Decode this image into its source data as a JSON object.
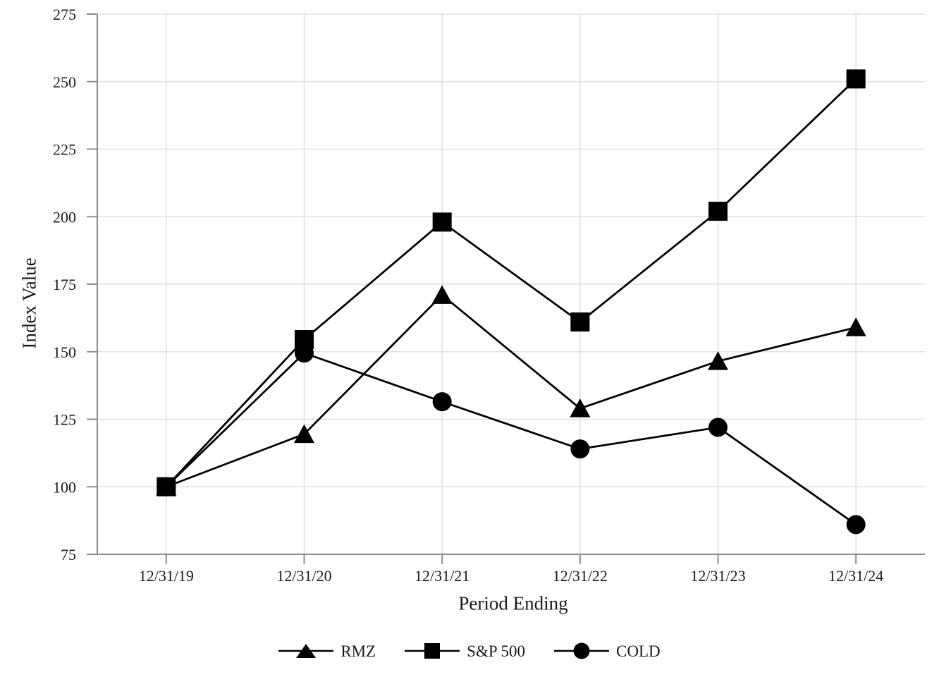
{
  "chart_data": {
    "type": "line",
    "title": "",
    "xlabel": "Period Ending",
    "ylabel": "Index Value",
    "x": [
      "12/31/19",
      "12/31/20",
      "12/31/21",
      "12/31/22",
      "12/31/23",
      "12/31/24"
    ],
    "ylim": [
      75,
      275
    ],
    "yticks": [
      75,
      100,
      125,
      150,
      175,
      200,
      225,
      250,
      275
    ],
    "grid": true,
    "legend_position": "bottom-center",
    "series": [
      {
        "name": "RMZ",
        "marker": "triangle",
        "values": [
          100,
          119.5,
          171,
          129,
          146.5,
          159
        ]
      },
      {
        "name": "S&P 500",
        "marker": "square",
        "values": [
          100,
          154.5,
          198,
          161,
          202,
          251
        ]
      },
      {
        "name": "COLD",
        "marker": "circle",
        "values": [
          100,
          149.5,
          131.5,
          114,
          122,
          86
        ]
      }
    ],
    "colors": {
      "series": "#000000",
      "grid": "#e0e0e0",
      "axis": "#8c8c8c",
      "text": "#1a1a1a"
    }
  }
}
